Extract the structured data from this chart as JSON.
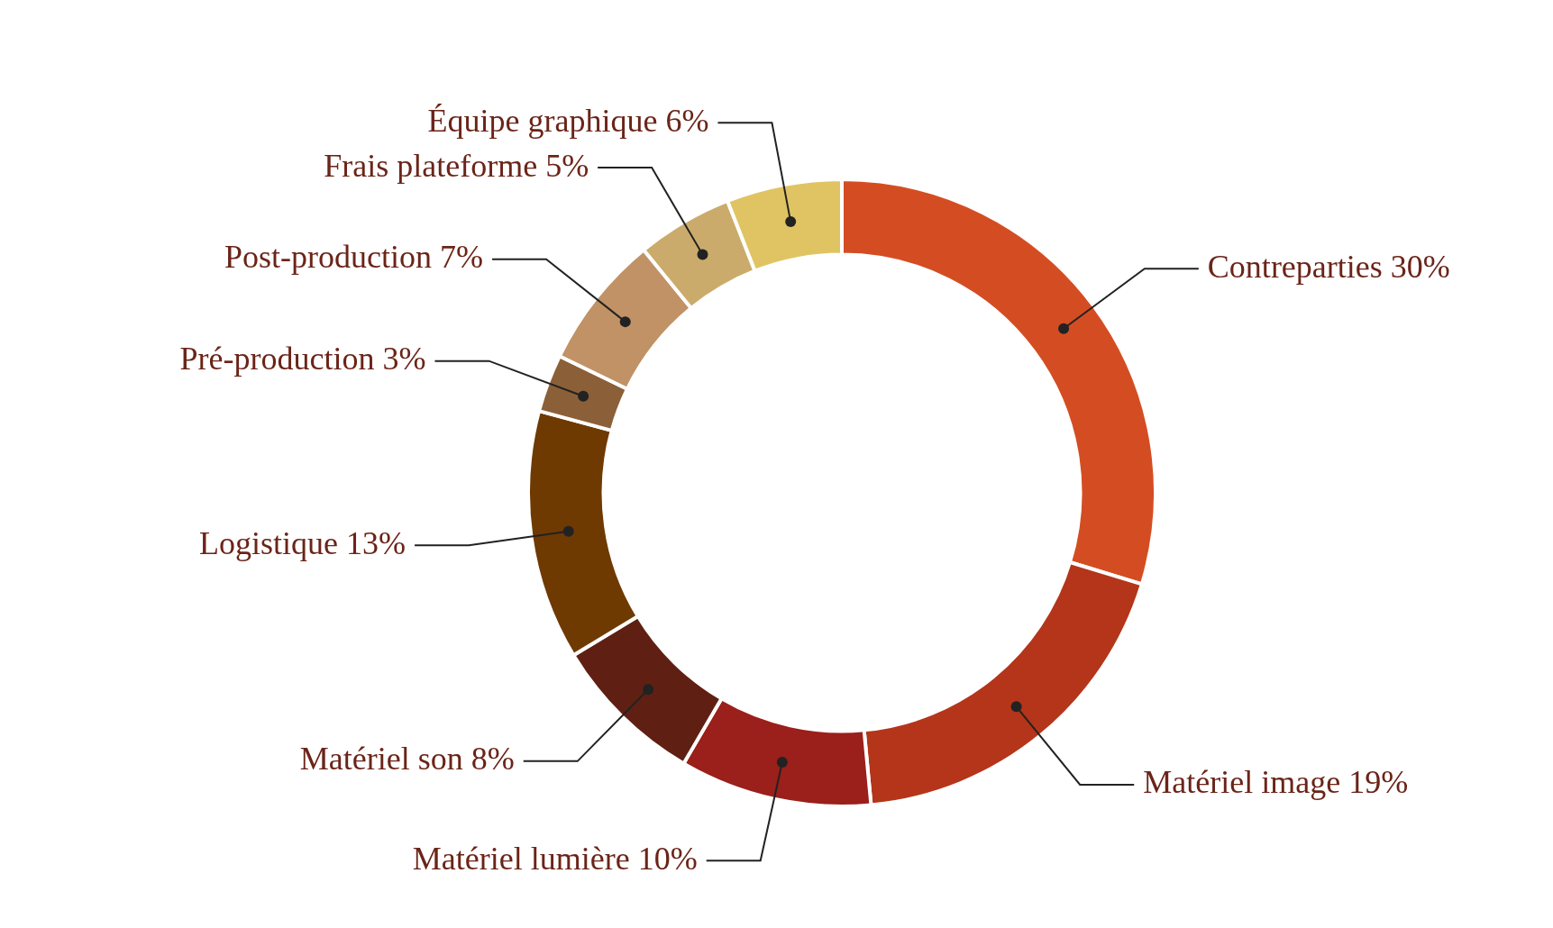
{
  "chart_data": {
    "type": "donut",
    "categories": [
      "Contreparties",
      "Matériel image",
      "Matériel lumière",
      "Matériel son",
      "Logistique",
      "Pré-production",
      "Post-production",
      "Frais plateforme",
      "Équipe graphique"
    ],
    "values": [
      30,
      19,
      10,
      8,
      13,
      3,
      7,
      5,
      6
    ],
    "value_labels": [
      "30%",
      "19%",
      "10%",
      "8%",
      "13%",
      "3%",
      "7%",
      "5%",
      "6%"
    ],
    "colors": [
      "#d44d22",
      "#b4351a",
      "#9b1f1a",
      "#5f2013",
      "#6e3a02",
      "#8b6038",
      "#c09266",
      "#cbab6c",
      "#e0c463"
    ]
  }
}
